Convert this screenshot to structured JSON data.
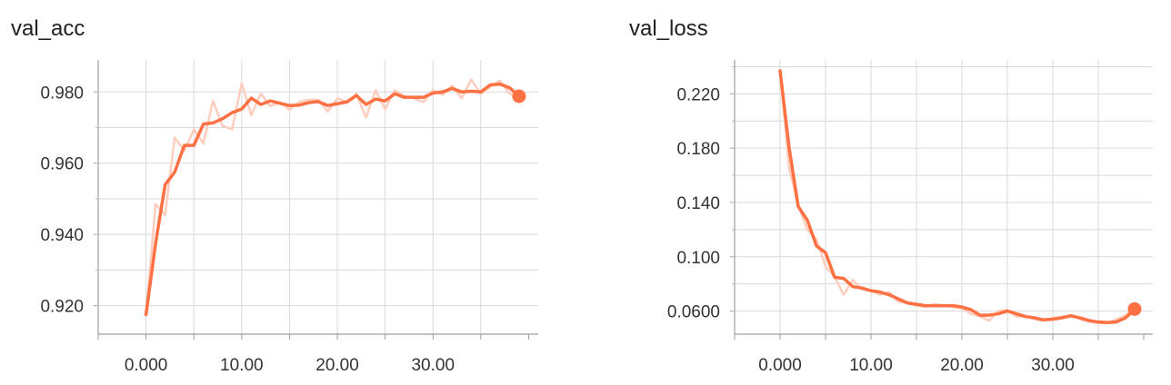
{
  "chart_data": [
    {
      "type": "line",
      "title": "val_acc",
      "xlabel": "",
      "ylabel": "",
      "x_ticks": [
        "0.000",
        "10.00",
        "20.00",
        "30.00"
      ],
      "y_ticks": [
        "0.920",
        "0.940",
        "0.960",
        "0.980"
      ],
      "xlim": [
        -5,
        41
      ],
      "ylim": [
        0.912,
        0.989
      ],
      "grid": true,
      "colors": {
        "smoothed": "#ff7043",
        "raw": "#ffcdbd",
        "grid": "#d9d9d9"
      },
      "series": [
        {
          "x": [
            0,
            1,
            2,
            3,
            4,
            5,
            6,
            7,
            8,
            9,
            10,
            11,
            12,
            13,
            14,
            15,
            16,
            17,
            18,
            19,
            20,
            21,
            22,
            23,
            24,
            25,
            26,
            27,
            28,
            29,
            30,
            31,
            32,
            33,
            34,
            35,
            36,
            37,
            38,
            39
          ],
          "smoothed": [
            0.9175,
            0.9375,
            0.954,
            0.9575,
            0.965,
            0.965,
            0.971,
            0.9713,
            0.9725,
            0.9742,
            0.9752,
            0.9783,
            0.9765,
            0.9775,
            0.9768,
            0.9762,
            0.9763,
            0.977,
            0.9773,
            0.9762,
            0.9767,
            0.9772,
            0.979,
            0.9765,
            0.978,
            0.9775,
            0.9795,
            0.9785,
            0.9785,
            0.9785,
            0.9797,
            0.98,
            0.981,
            0.98,
            0.9802,
            0.98,
            0.982,
            0.9822,
            0.9812,
            0.9788
          ],
          "raw": [
            0.9175,
            0.9485,
            0.9455,
            0.9672,
            0.9635,
            0.9695,
            0.9655,
            0.9775,
            0.9705,
            0.9695,
            0.9825,
            0.9735,
            0.9795,
            0.976,
            0.9772,
            0.975,
            0.9772,
            0.9778,
            0.9778,
            0.9745,
            0.9782,
            0.9772,
            0.9795,
            0.9728,
            0.9805,
            0.9752,
            0.9805,
            0.9788,
            0.9782,
            0.9772,
            0.9805,
            0.9792,
            0.9818,
            0.9782,
            0.9835,
            0.9795,
            0.9815,
            0.9832,
            0.9795,
            0.9788
          ]
        }
      ]
    },
    {
      "type": "line",
      "title": "val_loss",
      "xlabel": "",
      "ylabel": "",
      "x_ticks": [
        "0.000",
        "10.00",
        "20.00",
        "30.00"
      ],
      "y_ticks": [
        "0.0600",
        "0.100",
        "0.140",
        "0.180",
        "0.220"
      ],
      "xlim": [
        -5,
        41
      ],
      "ylim": [
        0.043,
        0.245
      ],
      "grid": true,
      "colors": {
        "smoothed": "#ff7043",
        "raw": "#ffcdbd",
        "grid": "#d9d9d9"
      },
      "series": [
        {
          "x": [
            0,
            1,
            2,
            3,
            4,
            5,
            6,
            7,
            8,
            9,
            10,
            11,
            12,
            13,
            14,
            15,
            16,
            17,
            18,
            19,
            20,
            21,
            22,
            23,
            24,
            25,
            26,
            27,
            28,
            29,
            30,
            31,
            32,
            33,
            34,
            35,
            36,
            37,
            38,
            39
          ],
          "smoothed": [
            0.237,
            0.18,
            0.137,
            0.127,
            0.108,
            0.103,
            0.085,
            0.084,
            0.078,
            0.077,
            0.075,
            0.074,
            0.072,
            0.069,
            0.066,
            0.065,
            0.064,
            0.064,
            0.064,
            0.064,
            0.063,
            0.061,
            0.057,
            0.057,
            0.058,
            0.06,
            0.058,
            0.056,
            0.055,
            0.0535,
            0.054,
            0.055,
            0.0565,
            0.055,
            0.053,
            0.052,
            0.0515,
            0.052,
            0.055,
            0.0615
          ],
          "raw": [
            0.237,
            0.165,
            0.138,
            0.12,
            0.113,
            0.093,
            0.085,
            0.072,
            0.083,
            0.076,
            0.075,
            0.072,
            0.074,
            0.067,
            0.066,
            0.064,
            0.063,
            0.065,
            0.064,
            0.063,
            0.062,
            0.058,
            0.056,
            0.053,
            0.06,
            0.061,
            0.056,
            0.056,
            0.054,
            0.053,
            0.055,
            0.056,
            0.057,
            0.054,
            0.052,
            0.051,
            0.051,
            0.054,
            0.057,
            0.0615
          ]
        }
      ]
    }
  ]
}
